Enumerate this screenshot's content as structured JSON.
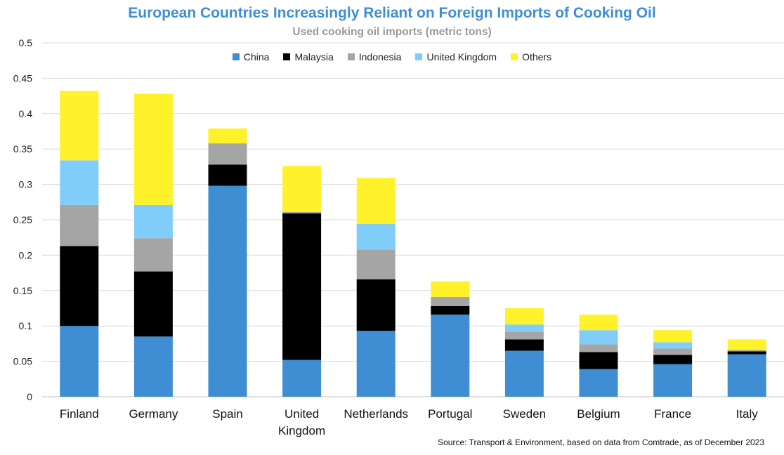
{
  "chart_data": {
    "type": "bar",
    "stacked": true,
    "title": "European Countries Increasingly Reliant on Foreign Imports of Cooking Oil",
    "subtitle": "Used cooking oil imports (metric tons)",
    "categories": [
      "Finland",
      "Germany",
      "Spain",
      "United Kingdom",
      "Netherlands",
      "Portugal",
      "Sweden",
      "Belgium",
      "France",
      "Italy"
    ],
    "category_lines": [
      [
        "Finland"
      ],
      [
        "Germany"
      ],
      [
        "Spain"
      ],
      [
        "United",
        "Kingdom"
      ],
      [
        "Netherlands"
      ],
      [
        "Portugal"
      ],
      [
        "Sweden"
      ],
      [
        "Belgium"
      ],
      [
        "France"
      ],
      [
        "Italy"
      ]
    ],
    "series": [
      {
        "name": "China",
        "color": "#3f8ed4",
        "values": [
          0.1,
          0.085,
          0.298,
          0.052,
          0.093,
          0.116,
          0.065,
          0.039,
          0.046,
          0.06
        ]
      },
      {
        "name": "Malaysia",
        "color": "#000000",
        "values": [
          0.113,
          0.092,
          0.03,
          0.207,
          0.073,
          0.012,
          0.016,
          0.024,
          0.013,
          0.004
        ]
      },
      {
        "name": "Indonesia",
        "color": "#a5a5a5",
        "values": [
          0.058,
          0.047,
          0.03,
          0.002,
          0.042,
          0.013,
          0.011,
          0.011,
          0.009,
          0.002
        ]
      },
      {
        "name": "United Kingdom",
        "color": "#7fcdf8",
        "values": [
          0.063,
          0.047,
          0.0,
          0.0,
          0.036,
          0.0,
          0.01,
          0.02,
          0.009,
          0.0
        ]
      },
      {
        "name": "Others",
        "color": "#fff22b",
        "values": [
          0.098,
          0.157,
          0.021,
          0.065,
          0.065,
          0.022,
          0.023,
          0.022,
          0.017,
          0.015
        ]
      }
    ],
    "ylim": [
      0,
      0.5
    ],
    "yticks": [
      0,
      0.05,
      0.1,
      0.15,
      0.2,
      0.25,
      0.3,
      0.35,
      0.4,
      0.45,
      0.5
    ],
    "ytick_labels": [
      "0",
      "0.05",
      "0.1",
      "0.15",
      "0.2",
      "0.25",
      "0.3",
      "0.35",
      "0.4",
      "0.45",
      "0.5"
    ],
    "grid": true,
    "legend_position": "top-center",
    "source": "Source: Transport & Environment, based on data from Comtrade, as of December 2023"
  }
}
